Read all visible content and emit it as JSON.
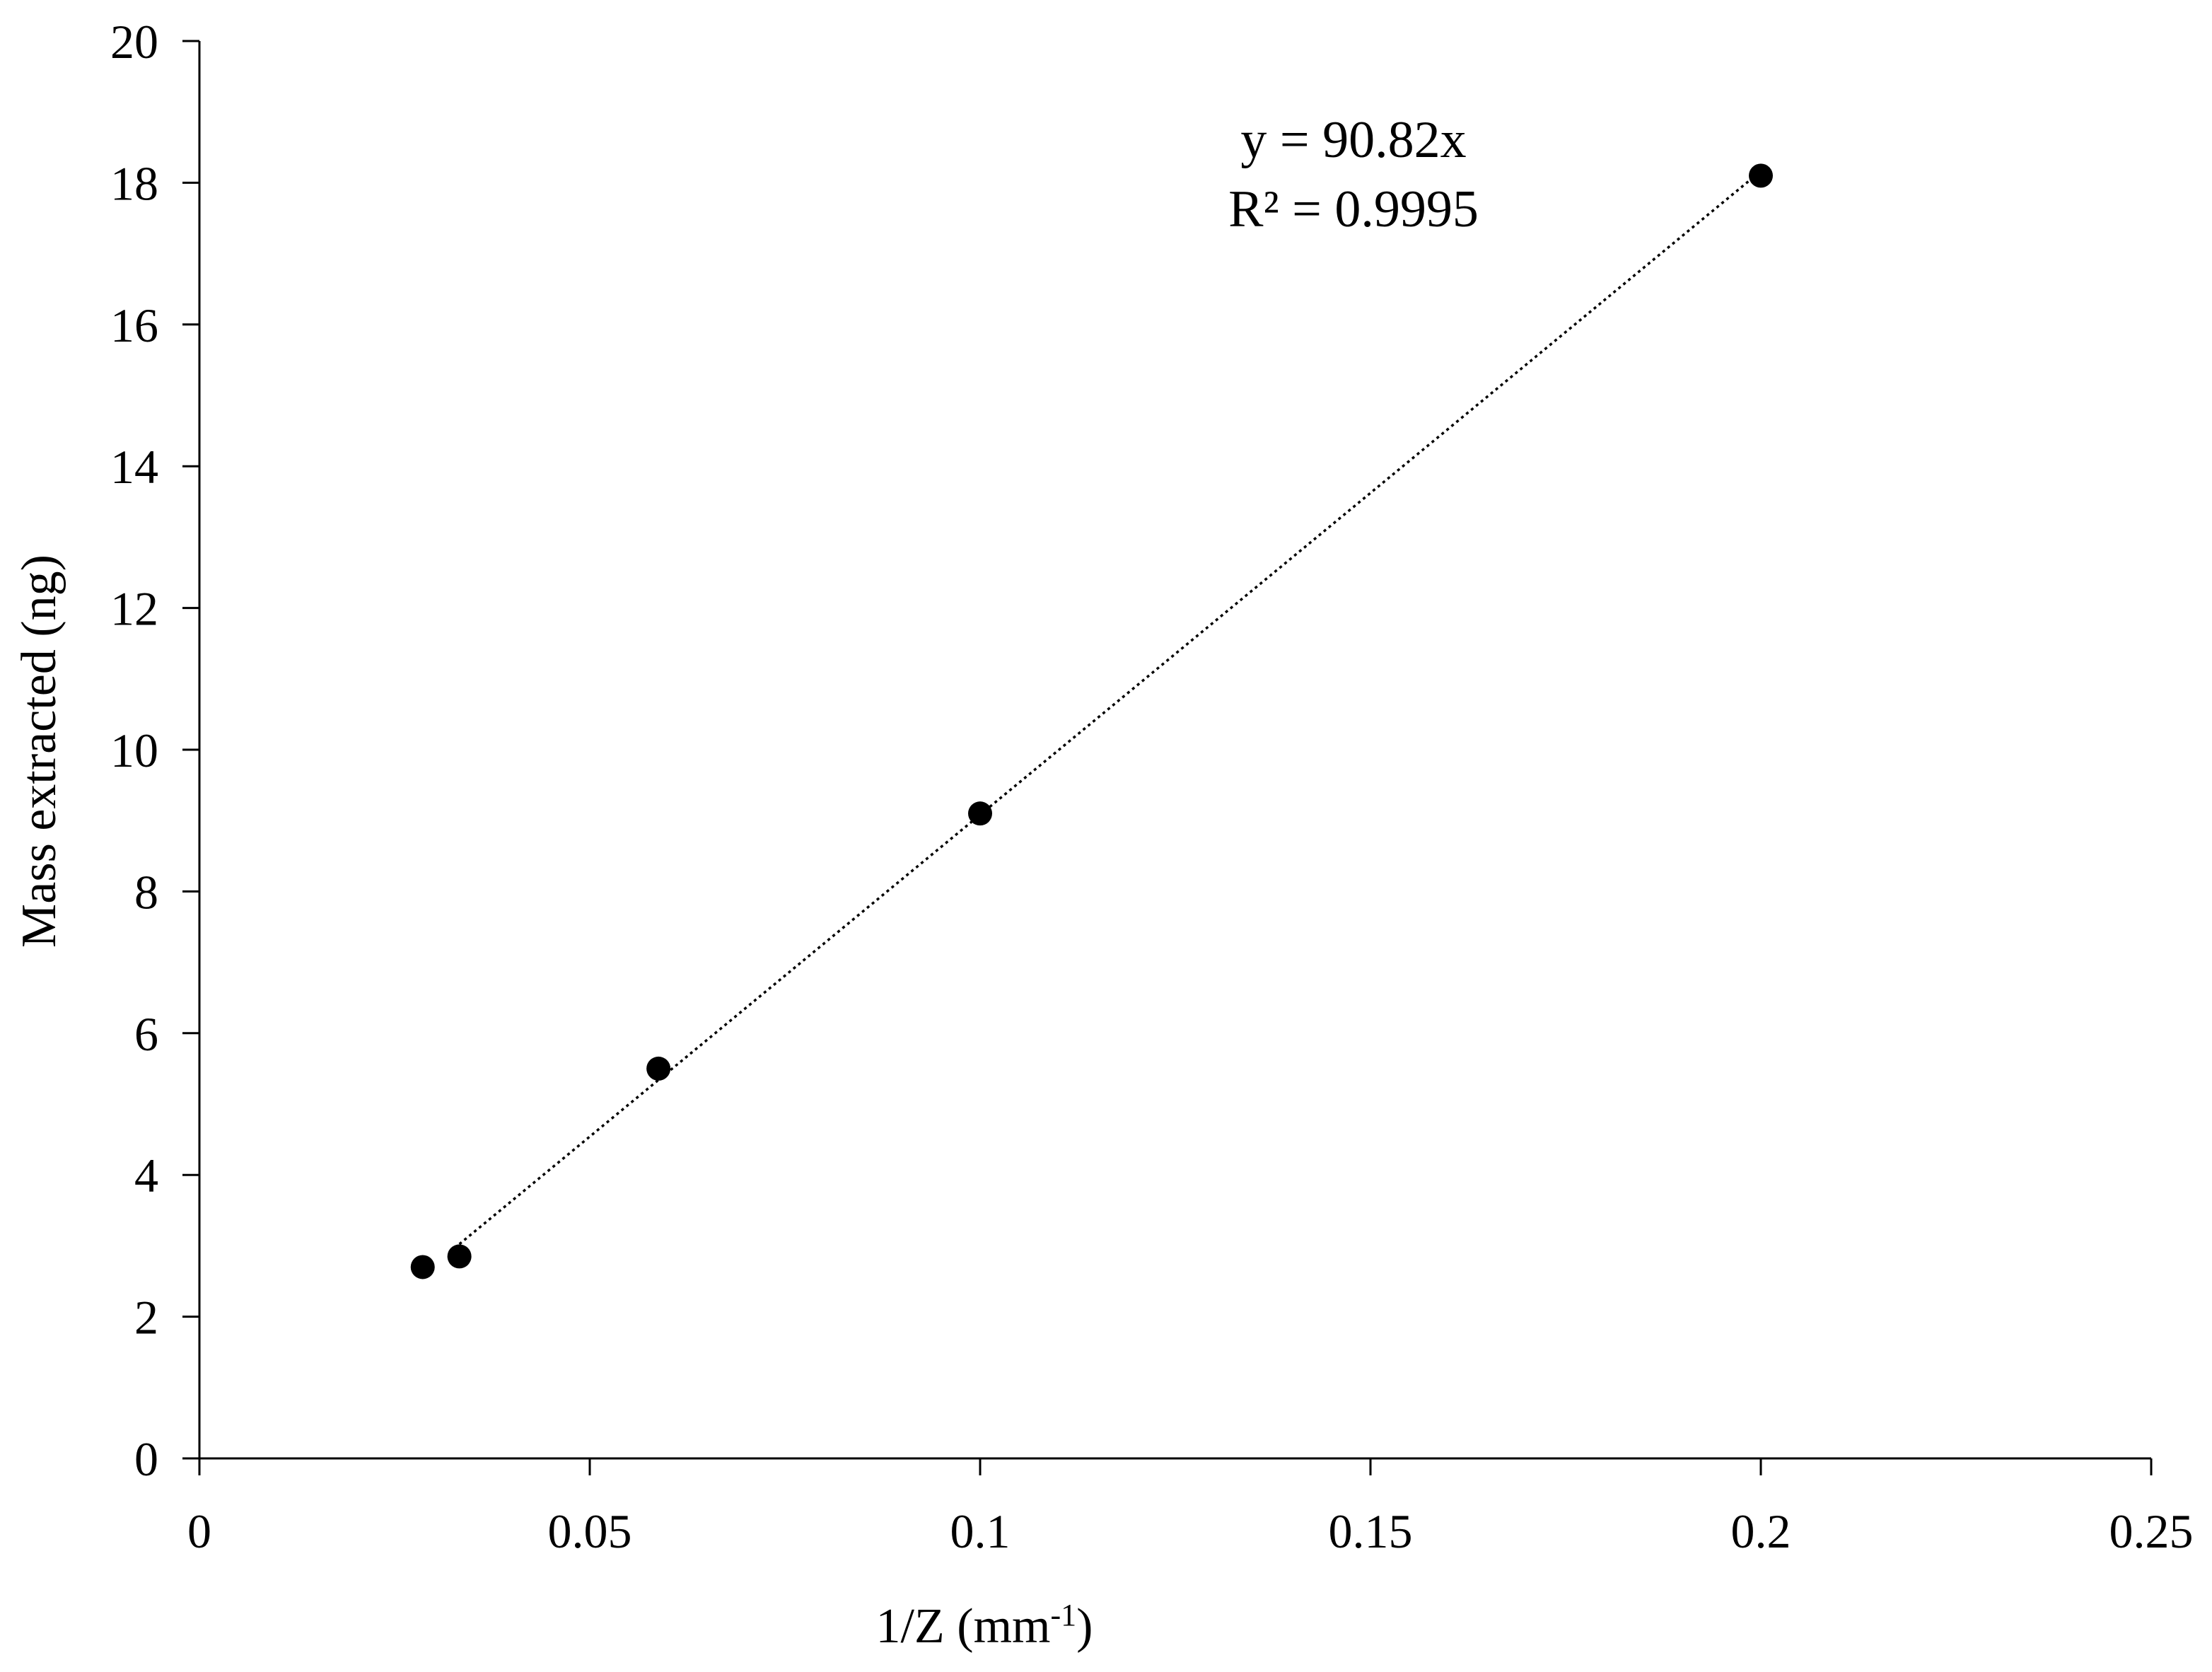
{
  "chart_data": {
    "type": "scatter",
    "title": "",
    "xlabel_main": "1/Z (mm",
    "xlabel_sup": "-1",
    "xlabel_close": ")",
    "ylabel": "Mass extracted (ng)",
    "xlim": [
      0,
      0.25
    ],
    "ylim": [
      0,
      20
    ],
    "x_ticks": [
      0,
      0.05,
      0.1,
      0.15,
      0.2,
      0.25
    ],
    "x_tick_labels": [
      "0",
      "0.05",
      "0.1",
      "0.15",
      "0.2",
      "0.25"
    ],
    "y_ticks": [
      0,
      2,
      4,
      6,
      8,
      10,
      12,
      14,
      16,
      18,
      20
    ],
    "y_tick_labels": [
      "0",
      "2",
      "4",
      "6",
      "8",
      "10",
      "12",
      "14",
      "16",
      "18",
      "20"
    ],
    "grid": false,
    "series": [
      {
        "name": "Mass extracted",
        "marker": "filled-circle",
        "color": "#000000",
        "x": [
          0.0286,
          0.0333,
          0.0588,
          0.1,
          0.2
        ],
        "y": [
          2.7,
          2.85,
          5.5,
          9.1,
          18.1
        ]
      }
    ],
    "trendline": {
      "type": "linear-through-origin",
      "slope": 90.82,
      "x_range": [
        0.0333,
        0.2
      ],
      "style": "dotted",
      "color": "#000000"
    },
    "annotation": {
      "equation": "y = 90.82x",
      "r_squared": "R² = 0.9995"
    }
  }
}
